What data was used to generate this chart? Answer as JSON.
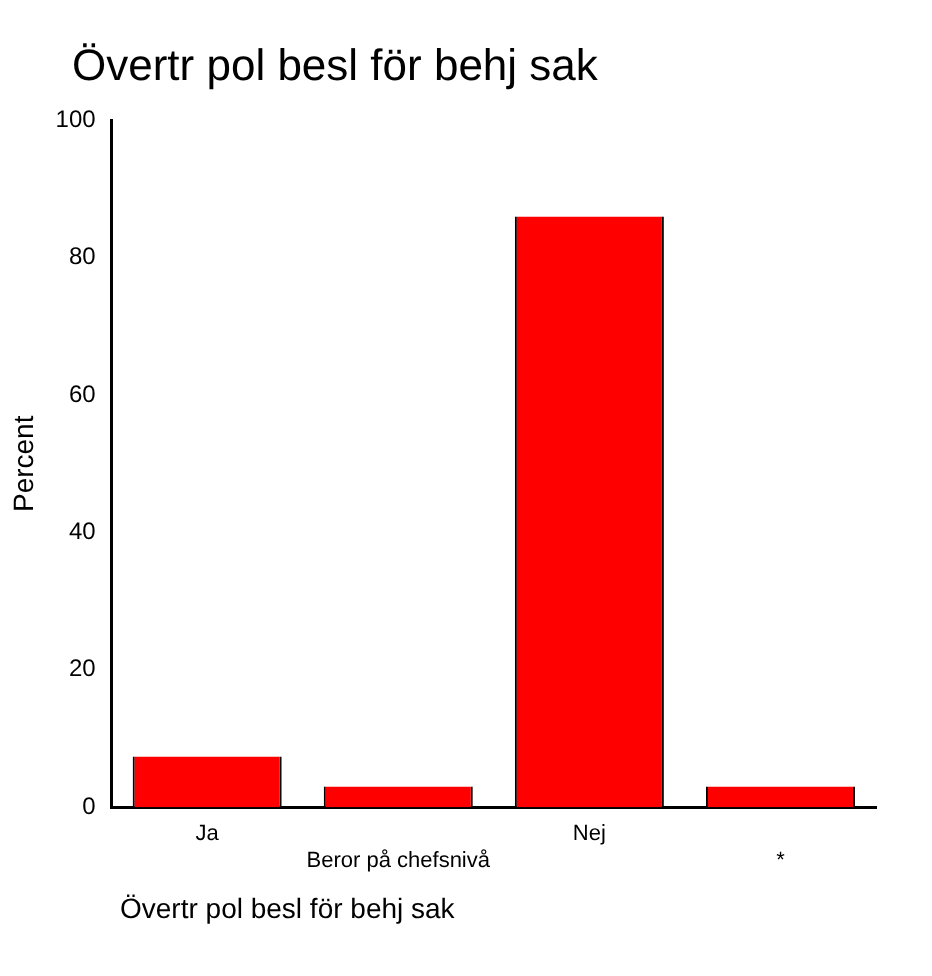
{
  "chart_data": {
    "type": "bar",
    "title": "Övertr pol besl för behj sak",
    "xlabel": "Övertr pol besl för behj sak",
    "ylabel": "Percent",
    "categories": [
      "Ja",
      "Beror på chefsnivå",
      "Nej",
      "*"
    ],
    "values": [
      7.4,
      3,
      86,
      3
    ],
    "color": "#ff0000",
    "ylim": [
      0,
      100
    ],
    "yticks": [
      0,
      20,
      40,
      60,
      80,
      100
    ],
    "grid": false,
    "legend": false
  }
}
